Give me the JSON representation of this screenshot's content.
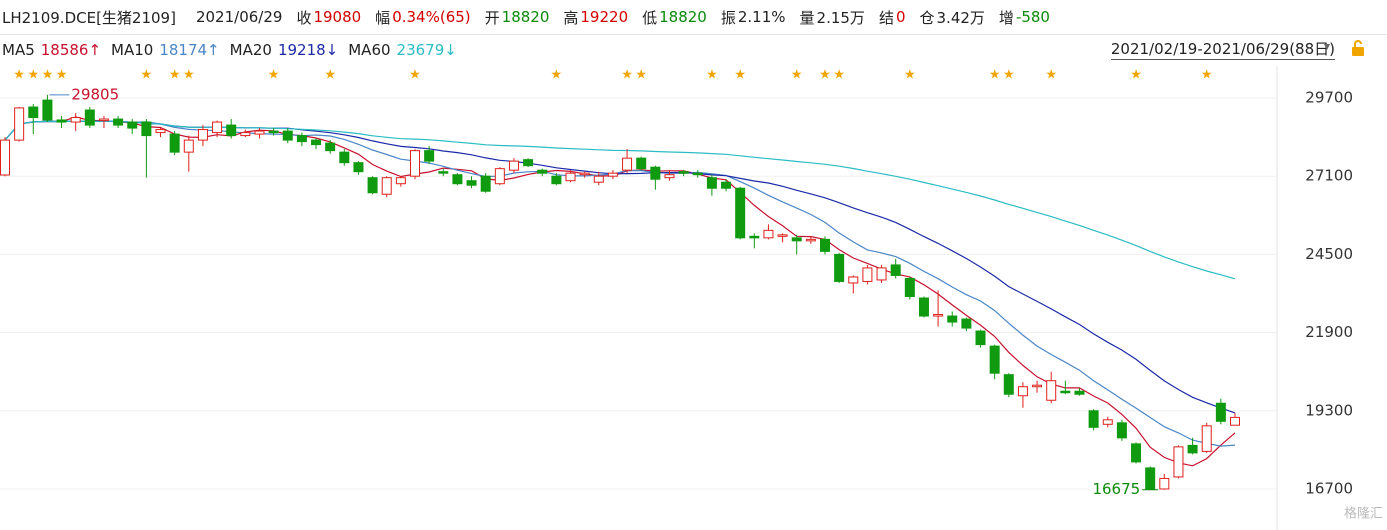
{
  "header": {
    "symbol": "LH2109.DCE[生猪2109]",
    "date": "2021/06/29",
    "fields": [
      {
        "label": "收",
        "value": "19080",
        "color": "#d40000"
      },
      {
        "label": "幅",
        "value": "0.34%(65)",
        "color": "#d40000"
      },
      {
        "label": "开",
        "value": "18820",
        "color": "#0a8a0a"
      },
      {
        "label": "高",
        "value": "19220",
        "color": "#d40000"
      },
      {
        "label": "低",
        "value": "18820",
        "color": "#0a8a0a"
      },
      {
        "label": "振",
        "value": "2.11%",
        "color": "#222222"
      },
      {
        "label": "量",
        "value": "2.15万",
        "color": "#222222"
      },
      {
        "label": "结",
        "value": "0",
        "color": "#d40000"
      },
      {
        "label": "仓",
        "value": "3.42万",
        "color": "#222222"
      },
      {
        "label": "增",
        "value": "-580",
        "color": "#0a8a0a"
      }
    ],
    "range": "2021/02/19-2021/06/29(88日)",
    "watermark": "格隆汇"
  },
  "chart_data": {
    "type": "candlestick",
    "ma_series": [
      {
        "name": "MA5",
        "value_label": "18586↑",
        "color": "#c8102e"
      },
      {
        "name": "MA10",
        "value_label": "18174↑",
        "color": "#4a86c6"
      },
      {
        "name": "MA20",
        "value_label": "19218↓",
        "color": "#1c2aa8"
      },
      {
        "name": "MA60",
        "value_label": "23679↓",
        "color": "#2bbcc4"
      }
    ],
    "up_color": "#e0201a",
    "down_color": "#0f9a0f",
    "marker": "★",
    "marker_color": "#f0a500",
    "marked_candles": [
      1,
      2,
      3,
      4,
      10,
      12,
      13,
      19,
      23,
      29,
      39,
      44,
      45,
      50,
      52,
      56,
      58,
      59,
      64,
      70,
      71,
      74,
      80,
      85
    ],
    "annotations": [
      29805,
      16675
    ],
    "ylim": [
      16167,
      30631
    ],
    "yticks": [
      29700,
      27100,
      24500,
      21900,
      19300,
      16700
    ],
    "grid": true,
    "open": [
      27140,
      28300,
      29400,
      29630,
      28970,
      28900,
      29300,
      28950,
      29000,
      28900,
      28900,
      28550,
      28500,
      27900,
      28300,
      28550,
      28800,
      28450,
      28500,
      28600,
      28600,
      28450,
      28300,
      28200,
      27900,
      27550,
      27050,
      26500,
      26850,
      27100,
      27950,
      27250,
      27150,
      26950,
      27100,
      26850,
      27300,
      27650,
      27300,
      27100,
      26950,
      27150,
      26900,
      27100,
      27300,
      27700,
      27400,
      27050,
      27250,
      27200,
      27050,
      26900,
      26700,
      25100,
      25050,
      25100,
      25050,
      24950,
      25000,
      24500,
      23550,
      23600,
      23650,
      24150,
      23700,
      23050,
      22450,
      22450,
      22350,
      21950,
      21450,
      20500,
      19800,
      20100,
      19650,
      19950,
      19950,
      19300,
      18850,
      18900,
      18200,
      17400,
      16700,
      17100,
      18150,
      17950,
      19550,
      18820
    ],
    "high": [
      28400,
      29400,
      29500,
      29805,
      29100,
      29200,
      29400,
      29100,
      29100,
      29000,
      29000,
      28700,
      28600,
      28450,
      28800,
      28950,
      29000,
      28650,
      28700,
      28700,
      28700,
      28550,
      28350,
      28300,
      28000,
      27600,
      27100,
      27100,
      27100,
      28000,
      28100,
      27350,
      27200,
      27100,
      27200,
      27400,
      27700,
      27700,
      27350,
      27200,
      27300,
      27250,
      27250,
      27300,
      28000,
      27750,
      27450,
      27300,
      27300,
      27300,
      27150,
      27000,
      26750,
      25200,
      25500,
      25200,
      25150,
      25100,
      25100,
      24550,
      23800,
      24150,
      24150,
      24350,
      23750,
      23100,
      23300,
      22600,
      22400,
      22000,
      21500,
      20550,
      20250,
      20300,
      20600,
      20300,
      20050,
      19350,
      19100,
      19000,
      18250,
      17450,
      17200,
      18150,
      18400,
      18900,
      19700,
      19220
    ],
    "low": [
      27100,
      28250,
      28500,
      28900,
      28700,
      28600,
      28700,
      28700,
      28700,
      28500,
      27050,
      28400,
      27800,
      27250,
      28100,
      28400,
      28350,
      28400,
      28350,
      28450,
      28200,
      28100,
      28000,
      27850,
      27450,
      27150,
      26500,
      26400,
      26750,
      27000,
      27500,
      27100,
      26800,
      26700,
      26550,
      26800,
      27200,
      27400,
      27100,
      26800,
      26900,
      27050,
      26800,
      27000,
      27200,
      27300,
      26650,
      26950,
      27100,
      27050,
      26450,
      26600,
      25000,
      24700,
      25000,
      24900,
      24500,
      24850,
      24500,
      23550,
      23200,
      23500,
      23550,
      23700,
      23000,
      22400,
      22100,
      22100,
      21950,
      21400,
      20350,
      19750,
      19400,
      19900,
      19550,
      19850,
      19800,
      18650,
      18750,
      18300,
      17550,
      16675,
      16675,
      17050,
      17850,
      17900,
      18850,
      18820
    ],
    "close": [
      28300,
      29370,
      29050,
      28970,
      28900,
      29050,
      28800,
      29000,
      28800,
      28700,
      28450,
      28650,
      27900,
      28300,
      28650,
      28900,
      28450,
      28550,
      28600,
      28550,
      28300,
      28250,
      28150,
      27950,
      27550,
      27250,
      26550,
      27050,
      27050,
      27950,
      27600,
      27200,
      26850,
      26800,
      26600,
      27350,
      27600,
      27450,
      27200,
      26850,
      27200,
      27200,
      27100,
      27200,
      27700,
      27350,
      27000,
      27150,
      27200,
      27150,
      26700,
      26700,
      25050,
      25050,
      25300,
      25150,
      24950,
      25000,
      24600,
      23600,
      23750,
      24050,
      24050,
      23800,
      23100,
      22450,
      22500,
      22250,
      22050,
      21500,
      20550,
      19850,
      20100,
      20150,
      20300,
      19900,
      19850,
      18750,
      19000,
      18400,
      17600,
      16700,
      17050,
      18100,
      17900,
      18800,
      18950,
      19080
    ]
  }
}
